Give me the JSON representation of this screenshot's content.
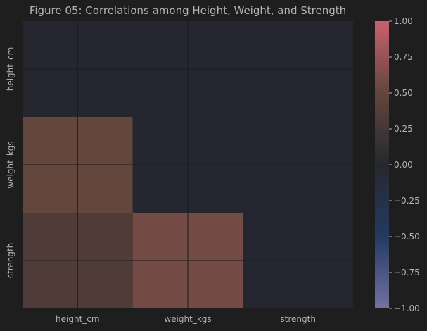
{
  "chart_data": {
    "type": "heatmap",
    "title": "Figure 05: Correlations among Height, Weight, and Strength",
    "xlabel": "",
    "ylabel": "",
    "x_categories": [
      "height_cm",
      "weight_kgs",
      "strength"
    ],
    "y_categories": [
      "height_cm",
      "weight_kgs",
      "strength"
    ],
    "matrix": [
      [
        null,
        null,
        null
      ],
      [
        0.5,
        null,
        null
      ],
      [
        0.34,
        0.58,
        null
      ]
    ],
    "mask": "upper triangle and diagonal",
    "grid": true,
    "colorbar": {
      "range": [
        -1.0,
        1.0
      ],
      "ticks": [
        "1.00",
        "0.75",
        "0.50",
        "0.25",
        "0.00",
        "−0.25",
        "−0.50",
        "−0.75",
        "−1.00"
      ],
      "tick_values": [
        1.0,
        0.75,
        0.5,
        0.25,
        0.0,
        -0.25,
        -0.5,
        -0.75,
        -1.0
      ],
      "placement": "right"
    }
  },
  "colors": {
    "background": "#1e1e1e",
    "masked_cell": "#25262f",
    "gridline": "#1b1b1f",
    "text": "#b3b3b3",
    "colormap_stops": [
      {
        "v": -1.0,
        "c": "#7272a0"
      },
      {
        "v": -0.5,
        "c": "#243a62"
      },
      {
        "v": 0.0,
        "c": "#262830"
      },
      {
        "v": 0.5,
        "c": "#63463c"
      },
      {
        "v": 1.0,
        "c": "#c9606e"
      }
    ]
  }
}
